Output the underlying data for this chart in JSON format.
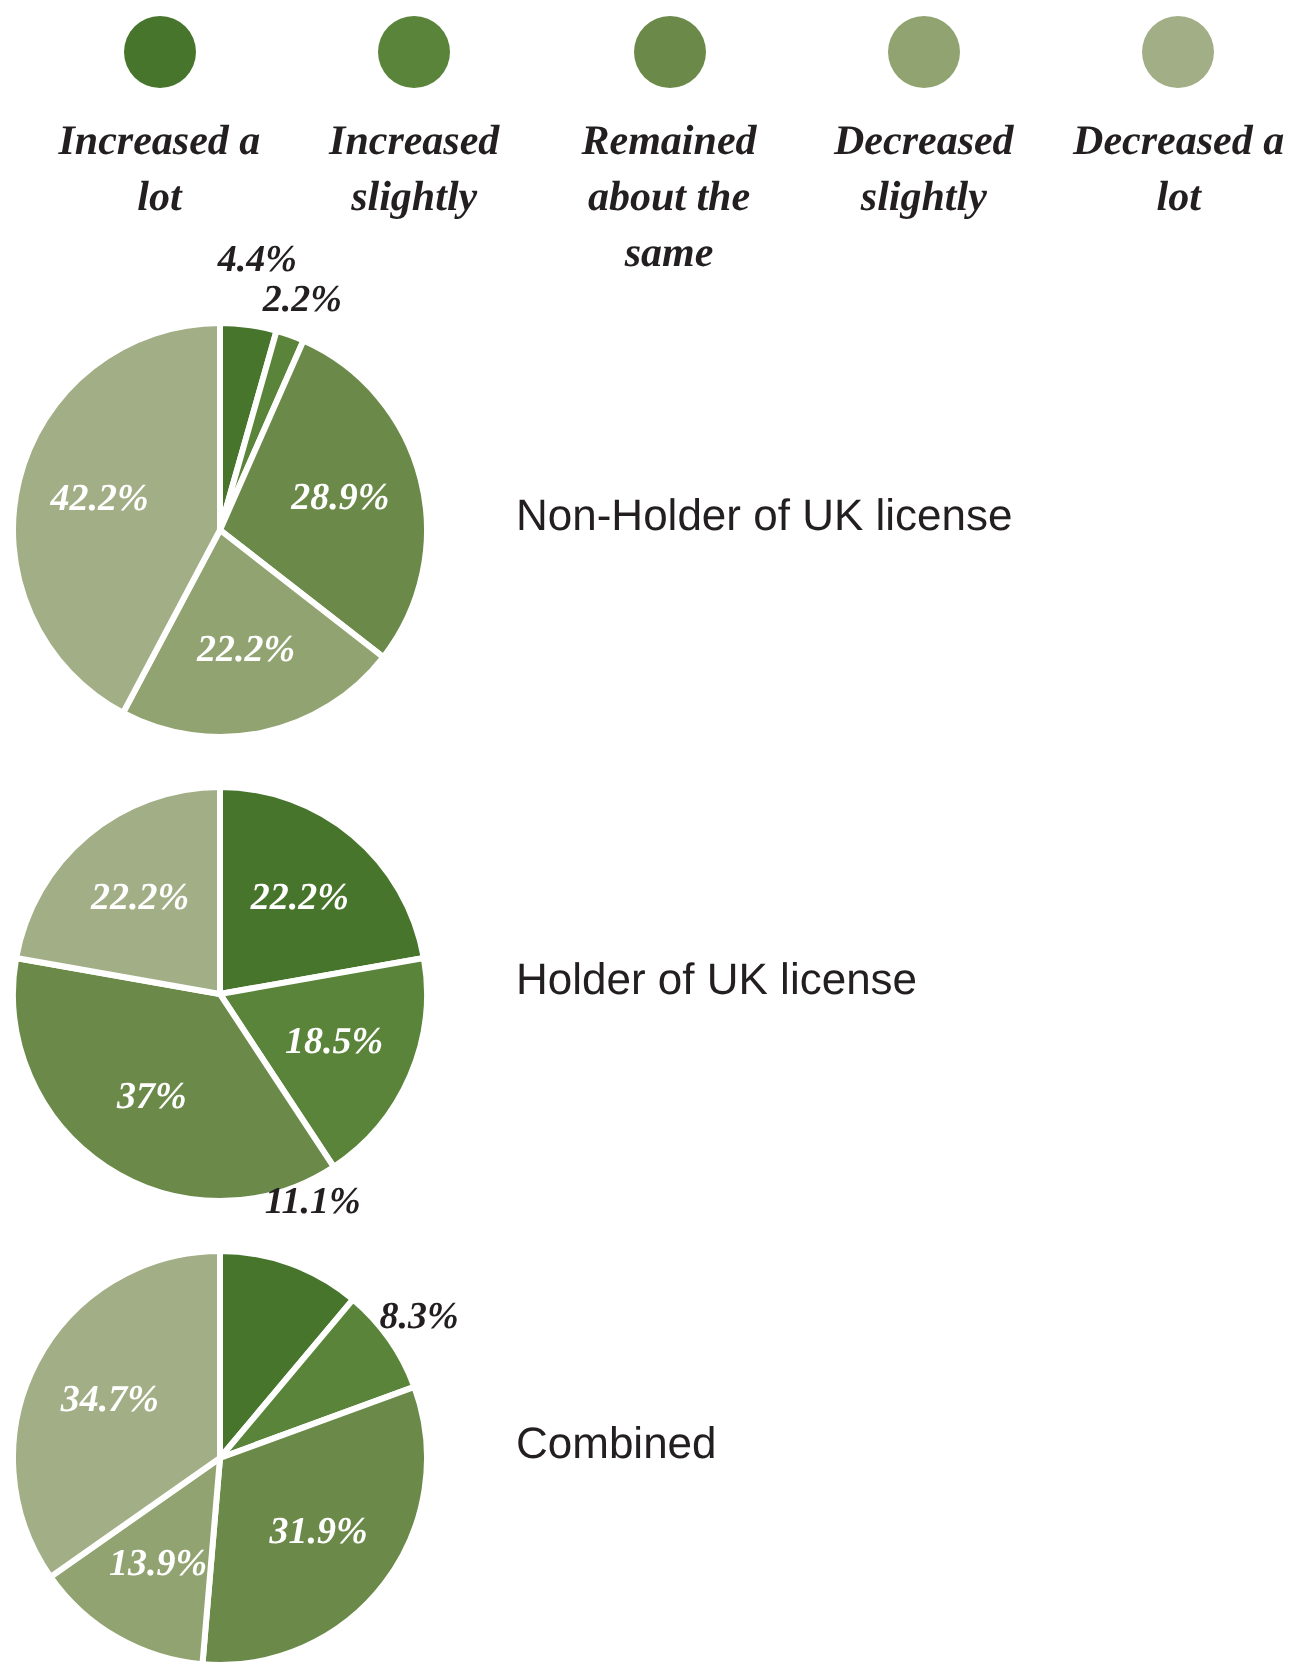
{
  "chart_data": [
    {
      "type": "pie",
      "title": "Non-Holder of UK license",
      "legend": "top",
      "categories": [
        "Increased a lot",
        "Increased slightly",
        "Remained about the same",
        "Decreased slightly",
        "Decreased a lot"
      ],
      "values": [
        4.4,
        2.2,
        28.9,
        22.2,
        42.2
      ],
      "value_labels": [
        "4.4%",
        "2.2%",
        "28.9%",
        "22.2%",
        "42.2%"
      ],
      "colors": [
        "#48752c",
        "#5a843a",
        "#6b8a4a",
        "#91a370",
        "#a2ae86"
      ]
    },
    {
      "type": "pie",
      "title": "Holder of UK license",
      "values": [
        22.2,
        18.5,
        37,
        null,
        22.2
      ],
      "value_labels": [
        "22.2%",
        "18.5%",
        "37%",
        null,
        "22.2%"
      ],
      "colors": [
        "#48752c",
        "#5a843a",
        "#6b8a4a",
        "#91a370",
        "#a2ae86"
      ]
    },
    {
      "type": "pie",
      "title": "Combined",
      "values": [
        11.1,
        8.3,
        31.9,
        13.9,
        34.7
      ],
      "value_labels": [
        "11.1%",
        "8.3%",
        "31.9%",
        "13.9%",
        "34.7%"
      ],
      "colors": [
        "#48752c",
        "#5a843a",
        "#6b8a4a",
        "#91a370",
        "#a2ae86"
      ]
    }
  ]
}
